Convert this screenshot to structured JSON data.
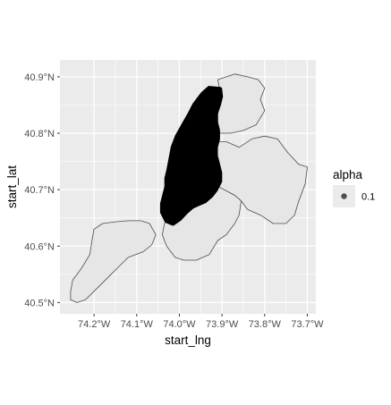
{
  "chart_data": {
    "type": "scatter",
    "title": "",
    "xlabel": "start_lng",
    "ylabel": "start_lat",
    "xlim": [
      -74.28,
      -73.68
    ],
    "ylim": [
      40.48,
      40.93
    ],
    "x_ticks": [
      {
        "value": -74.2,
        "label": "74.2°W"
      },
      {
        "value": -74.1,
        "label": "74.1°W"
      },
      {
        "value": -74.0,
        "label": "74.0°W"
      },
      {
        "value": -73.9,
        "label": "73.9°W"
      },
      {
        "value": -73.8,
        "label": "73.8°W"
      },
      {
        "value": -73.7,
        "label": "73.7°W"
      }
    ],
    "y_ticks": [
      {
        "value": 40.5,
        "label": "40.5°N"
      },
      {
        "value": 40.6,
        "label": "40.6°N"
      },
      {
        "value": 40.7,
        "label": "40.7°N"
      },
      {
        "value": 40.8,
        "label": "40.8°N"
      },
      {
        "value": 40.9,
        "label": "40.9°N"
      }
    ],
    "grid": true,
    "legend": {
      "title": "alpha",
      "position": "right",
      "entries": [
        {
          "label": "0.1",
          "color": "#000000"
        }
      ]
    },
    "panel_background": "#ebebeb",
    "grid_color": "#ffffff",
    "map_fill": "#e6e6e6",
    "map_border": "#4d4d4d",
    "point_color": "#000000",
    "point_cluster_outline": [
      [
        -73.905,
        40.878
      ],
      [
        -73.93,
        40.88
      ],
      [
        -73.945,
        40.87
      ],
      [
        -73.955,
        40.86
      ],
      [
        -73.965,
        40.85
      ],
      [
        -73.975,
        40.835
      ],
      [
        -73.99,
        40.815
      ],
      [
        -74.005,
        40.795
      ],
      [
        -74.015,
        40.775
      ],
      [
        -74.02,
        40.755
      ],
      [
        -74.025,
        40.735
      ],
      [
        -74.03,
        40.72
      ],
      [
        -74.03,
        40.705
      ],
      [
        -74.035,
        40.69
      ],
      [
        -74.04,
        40.675
      ],
      [
        -74.04,
        40.66
      ],
      [
        -74.03,
        40.645
      ],
      [
        -74.015,
        40.64
      ],
      [
        -74.0,
        40.648
      ],
      [
        -73.985,
        40.66
      ],
      [
        -73.97,
        40.67
      ],
      [
        -73.955,
        40.675
      ],
      [
        -73.94,
        40.68
      ],
      [
        -73.925,
        40.69
      ],
      [
        -73.915,
        40.7
      ],
      [
        -73.905,
        40.715
      ],
      [
        -73.905,
        40.73
      ],
      [
        -73.91,
        40.745
      ],
      [
        -73.915,
        40.76
      ],
      [
        -73.915,
        40.775
      ],
      [
        -73.91,
        40.79
      ],
      [
        -73.91,
        40.805
      ],
      [
        -73.915,
        40.82
      ],
      [
        -73.915,
        40.835
      ],
      [
        -73.908,
        40.85
      ],
      [
        -73.903,
        40.865
      ]
    ],
    "map_regions": [
      {
        "name": "staten-island",
        "points": [
          [
            -74.255,
            40.505
          ],
          [
            -74.24,
            40.5
          ],
          [
            -74.22,
            40.505
          ],
          [
            -74.2,
            40.52
          ],
          [
            -74.18,
            40.535
          ],
          [
            -74.16,
            40.55
          ],
          [
            -74.14,
            40.565
          ],
          [
            -74.12,
            40.58
          ],
          [
            -74.085,
            40.59
          ],
          [
            -74.065,
            40.602
          ],
          [
            -74.055,
            40.62
          ],
          [
            -74.07,
            40.64
          ],
          [
            -74.09,
            40.645
          ],
          [
            -74.12,
            40.645
          ],
          [
            -74.15,
            40.643
          ],
          [
            -74.18,
            40.64
          ],
          [
            -74.2,
            40.63
          ],
          [
            -74.205,
            40.61
          ],
          [
            -74.21,
            40.585
          ],
          [
            -74.23,
            40.56
          ],
          [
            -74.25,
            40.54
          ],
          [
            -74.255,
            40.52
          ]
        ]
      },
      {
        "name": "bronx",
        "points": [
          [
            -73.92,
            40.8
          ],
          [
            -73.91,
            40.815
          ],
          [
            -73.91,
            40.835
          ],
          [
            -73.905,
            40.855
          ],
          [
            -73.905,
            40.875
          ],
          [
            -73.91,
            40.895
          ],
          [
            -73.87,
            40.905
          ],
          [
            -73.84,
            40.9
          ],
          [
            -73.815,
            40.895
          ],
          [
            -73.8,
            40.88
          ],
          [
            -73.81,
            40.86
          ],
          [
            -73.8,
            40.84
          ],
          [
            -73.82,
            40.815
          ],
          [
            -73.85,
            40.805
          ],
          [
            -73.88,
            40.8
          ]
        ]
      },
      {
        "name": "queens",
        "points": [
          [
            -73.945,
            40.76
          ],
          [
            -73.92,
            40.785
          ],
          [
            -73.89,
            40.785
          ],
          [
            -73.86,
            40.775
          ],
          [
            -73.83,
            40.79
          ],
          [
            -73.8,
            40.795
          ],
          [
            -73.77,
            40.79
          ],
          [
            -73.745,
            40.765
          ],
          [
            -73.72,
            40.745
          ],
          [
            -73.7,
            40.74
          ],
          [
            -73.705,
            40.71
          ],
          [
            -73.72,
            40.68
          ],
          [
            -73.73,
            40.655
          ],
          [
            -73.75,
            40.64
          ],
          [
            -73.78,
            40.64
          ],
          [
            -73.81,
            40.655
          ],
          [
            -73.84,
            40.665
          ],
          [
            -73.855,
            40.68
          ],
          [
            -73.87,
            40.69
          ],
          [
            -73.895,
            40.7
          ],
          [
            -73.92,
            40.71
          ],
          [
            -73.94,
            40.725
          ]
        ]
      },
      {
        "name": "brooklyn",
        "points": [
          [
            -73.96,
            40.735
          ],
          [
            -73.94,
            40.725
          ],
          [
            -73.92,
            40.71
          ],
          [
            -73.895,
            40.7
          ],
          [
            -73.87,
            40.69
          ],
          [
            -73.855,
            40.68
          ],
          [
            -73.86,
            40.655
          ],
          [
            -73.87,
            40.64
          ],
          [
            -73.89,
            40.62
          ],
          [
            -73.91,
            40.61
          ],
          [
            -73.93,
            40.585
          ],
          [
            -73.96,
            40.575
          ],
          [
            -73.99,
            40.575
          ],
          [
            -74.01,
            40.58
          ],
          [
            -74.03,
            40.6
          ],
          [
            -74.04,
            40.62
          ],
          [
            -74.035,
            40.64
          ],
          [
            -74.02,
            40.66
          ],
          [
            -74.01,
            40.68
          ],
          [
            -73.995,
            40.7
          ],
          [
            -73.98,
            40.71
          ]
        ]
      },
      {
        "name": "manhattan",
        "points": [
          [
            -73.93,
            40.88
          ],
          [
            -73.91,
            40.875
          ],
          [
            -73.93,
            40.84
          ],
          [
            -73.935,
            40.81
          ],
          [
            -73.945,
            40.79
          ],
          [
            -73.96,
            40.765
          ],
          [
            -73.97,
            40.745
          ],
          [
            -73.975,
            40.72
          ],
          [
            -73.98,
            40.71
          ],
          [
            -74.0,
            40.7
          ],
          [
            -74.015,
            40.705
          ],
          [
            -74.015,
            40.72
          ],
          [
            -74.01,
            40.755
          ],
          [
            -73.995,
            40.78
          ],
          [
            -73.975,
            40.81
          ],
          [
            -73.955,
            40.84
          ],
          [
            -73.94,
            40.865
          ]
        ]
      }
    ]
  }
}
